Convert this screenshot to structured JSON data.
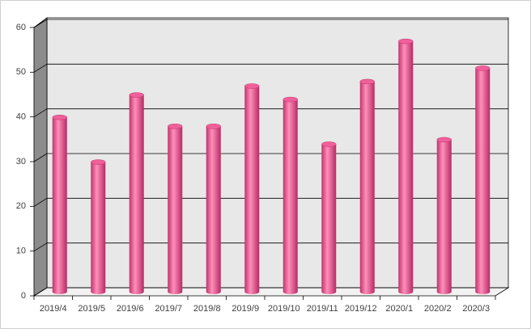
{
  "chart_data": {
    "type": "bar",
    "categories": [
      "2019/4",
      "2019/5",
      "2019/6",
      "2019/7",
      "2019/8",
      "2019/9",
      "2019/10",
      "2019/11",
      "2019/12",
      "2020/1",
      "2020/2",
      "2020/3"
    ],
    "values": [
      39,
      29,
      44,
      37,
      37,
      46,
      43,
      33,
      47,
      56,
      34,
      50
    ],
    "color": "#f0609a",
    "ylim": [
      0,
      60
    ],
    "yticks": [
      0,
      10,
      20,
      30,
      40,
      50,
      60
    ],
    "grid": true
  }
}
